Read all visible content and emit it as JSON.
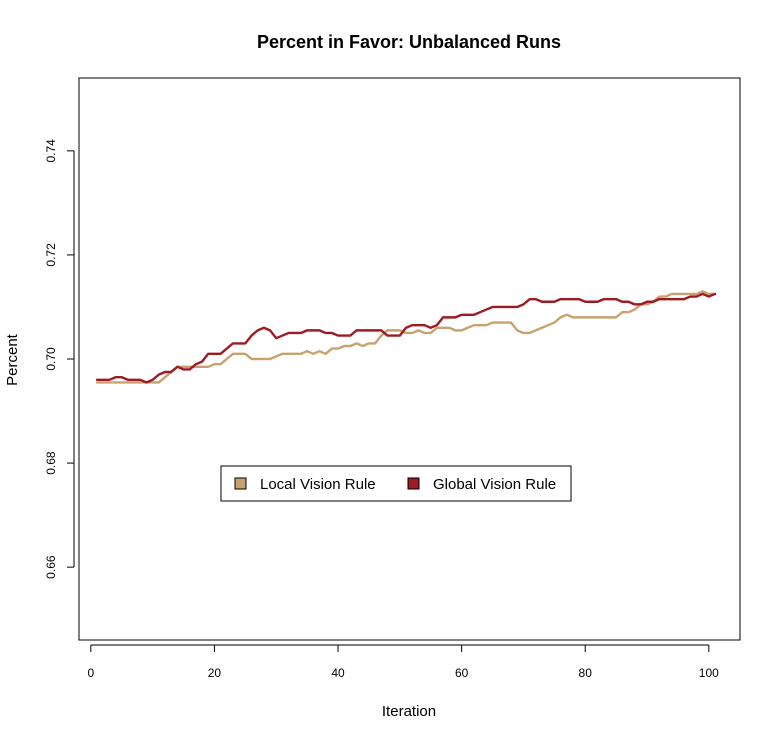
{
  "chart_data": {
    "type": "line",
    "title": "Percent in Favor: Unbalanced Runs",
    "xlabel": "Iteration",
    "ylabel": "Percent",
    "xlim": [
      1,
      101
    ],
    "ylim": [
      0.646,
      0.754
    ],
    "x_ticks": [
      0,
      20,
      40,
      60,
      80,
      100
    ],
    "y_ticks": [
      0.66,
      0.68,
      0.7,
      0.72,
      0.74
    ],
    "x_tick_labels": [
      "0",
      "20",
      "40",
      "60",
      "80",
      "100"
    ],
    "y_tick_labels": [
      "0.66",
      "0.68",
      "0.70",
      "0.72",
      "0.74"
    ],
    "grid": false,
    "legend_position": "center-left",
    "x": [
      1,
      2,
      3,
      4,
      5,
      6,
      7,
      8,
      9,
      10,
      11,
      12,
      13,
      14,
      15,
      16,
      17,
      18,
      19,
      20,
      21,
      22,
      23,
      24,
      25,
      26,
      27,
      28,
      29,
      30,
      31,
      32,
      33,
      34,
      35,
      36,
      37,
      38,
      39,
      40,
      41,
      42,
      43,
      44,
      45,
      46,
      47,
      48,
      49,
      50,
      51,
      52,
      53,
      54,
      55,
      56,
      57,
      58,
      59,
      60,
      61,
      62,
      63,
      64,
      65,
      66,
      67,
      68,
      69,
      70,
      71,
      72,
      73,
      74,
      75,
      76,
      77,
      78,
      79,
      80,
      81,
      82,
      83,
      84,
      85,
      86,
      87,
      88,
      89,
      90,
      91,
      92,
      93,
      94,
      95,
      96,
      97,
      98,
      99,
      100,
      101
    ],
    "series": [
      {
        "name": "Local Vision Rule",
        "color": "#C8A26E",
        "values": [
          0.6955,
          0.6955,
          0.6955,
          0.6955,
          0.6955,
          0.6955,
          0.6955,
          0.6955,
          0.6955,
          0.6955,
          0.6955,
          0.6965,
          0.6975,
          0.6985,
          0.6985,
          0.6985,
          0.6985,
          0.6985,
          0.6985,
          0.699,
          0.699,
          0.7,
          0.701,
          0.701,
          0.701,
          0.7,
          0.7,
          0.7,
          0.7,
          0.7005,
          0.701,
          0.701,
          0.701,
          0.701,
          0.7015,
          0.701,
          0.7015,
          0.701,
          0.702,
          0.702,
          0.7025,
          0.7025,
          0.703,
          0.7025,
          0.703,
          0.703,
          0.7045,
          0.7055,
          0.7055,
          0.7055,
          0.705,
          0.705,
          0.7055,
          0.705,
          0.705,
          0.706,
          0.706,
          0.706,
          0.7055,
          0.7055,
          0.706,
          0.7065,
          0.7065,
          0.7065,
          0.707,
          0.707,
          0.707,
          0.707,
          0.7055,
          0.705,
          0.705,
          0.7055,
          0.706,
          0.7065,
          0.707,
          0.708,
          0.7085,
          0.708,
          0.708,
          0.708,
          0.708,
          0.708,
          0.708,
          0.708,
          0.708,
          0.709,
          0.709,
          0.7095,
          0.7105,
          0.7105,
          0.711,
          0.712,
          0.712,
          0.7125,
          0.7125,
          0.7125,
          0.7125,
          0.7125,
          0.713,
          0.7125,
          0.7125
        ]
      },
      {
        "name": "Global Vision Rule",
        "color": "#9E1B24",
        "values": [
          0.696,
          0.696,
          0.696,
          0.6965,
          0.6965,
          0.696,
          0.696,
          0.696,
          0.6955,
          0.696,
          0.697,
          0.6975,
          0.6975,
          0.6985,
          0.698,
          0.698,
          0.699,
          0.6995,
          0.701,
          0.701,
          0.701,
          0.702,
          0.703,
          0.703,
          0.703,
          0.7045,
          0.7055,
          0.706,
          0.7055,
          0.704,
          0.7045,
          0.705,
          0.705,
          0.705,
          0.7055,
          0.7055,
          0.7055,
          0.705,
          0.705,
          0.7045,
          0.7045,
          0.7045,
          0.7055,
          0.7055,
          0.7055,
          0.7055,
          0.7055,
          0.7045,
          0.7045,
          0.7045,
          0.706,
          0.7065,
          0.7065,
          0.7065,
          0.706,
          0.7065,
          0.708,
          0.708,
          0.708,
          0.7085,
          0.7085,
          0.7085,
          0.709,
          0.7095,
          0.71,
          0.71,
          0.71,
          0.71,
          0.71,
          0.7105,
          0.7115,
          0.7115,
          0.711,
          0.711,
          0.711,
          0.7115,
          0.7115,
          0.7115,
          0.7115,
          0.711,
          0.711,
          0.711,
          0.7115,
          0.7115,
          0.7115,
          0.711,
          0.711,
          0.7105,
          0.7105,
          0.711,
          0.711,
          0.7115,
          0.7115,
          0.7115,
          0.7115,
          0.7115,
          0.712,
          0.712,
          0.7125,
          0.712,
          0.7125
        ]
      }
    ]
  }
}
